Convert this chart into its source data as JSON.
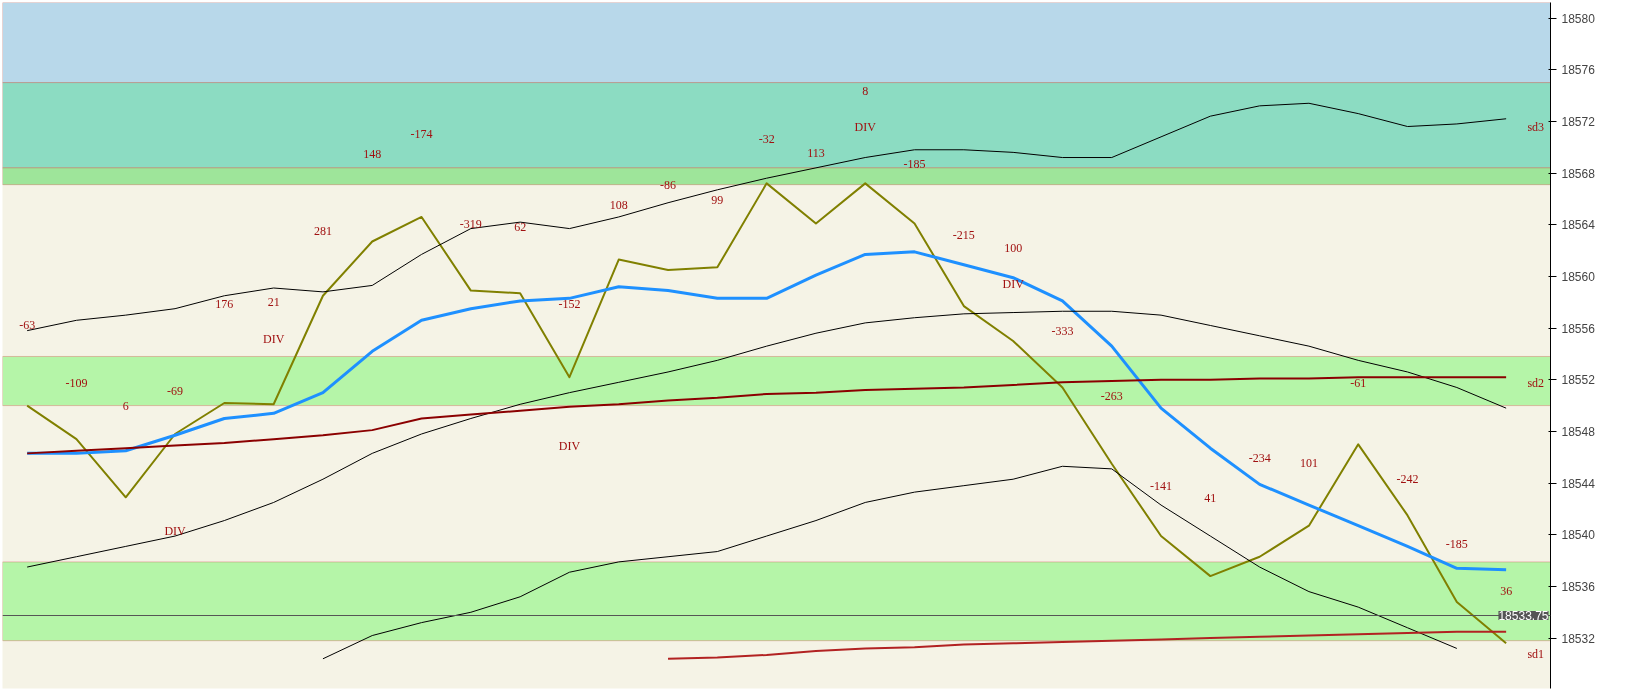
{
  "chart_data": {
    "type": "line",
    "categories": [
      null,
      null,
      null,
      null,
      null,
      null,
      null,
      null,
      null,
      null,
      null,
      null,
      null,
      null,
      null,
      null,
      null,
      null,
      null,
      null,
      null,
      null,
      null,
      null,
      null,
      null,
      null,
      null,
      null,
      null,
      null
    ],
    "ylim": [
      18528.1,
      18581.2
    ],
    "yticks": [
      18532,
      18536,
      18540,
      18544,
      18548,
      18552,
      18556,
      18560,
      18564,
      18568,
      18572,
      18576,
      18580
    ],
    "tick_labels": "y",
    "grid": false,
    "marker": "none",
    "line_style": "solid",
    "series": [
      {
        "color": "#808000",
        "values": [
          18550.0,
          18547.4,
          18542.9,
          18547.8,
          18550.2,
          18550.1,
          18558.5,
          18562.7,
          18564.6,
          18558.9,
          18558.7,
          18552.2,
          18561.3,
          18560.5,
          18560.7,
          18567.2,
          18564.1,
          18567.2,
          18564.1,
          18557.7,
          18555.0,
          18551.4,
          18545.5,
          18539.9,
          18536.8,
          18538.3,
          18540.7,
          18547.0,
          18541.5,
          18534.8,
          18531.6
        ]
      },
      {
        "color": "#1e90ff",
        "values": [
          18546.3,
          18546.3,
          18546.5,
          18547.7,
          18549.0,
          18549.4,
          18551.0,
          18554.2,
          18556.6,
          18557.5,
          18558.1,
          18558.3,
          18559.2,
          18558.9,
          18558.3,
          18558.3,
          18560.1,
          18561.7,
          18561.9,
          18560.9,
          18559.9,
          18558.1,
          18554.6,
          18549.8,
          18546.7,
          18543.9,
          18542.3,
          18540.7,
          18539.1,
          18537.4,
          18537.3
        ]
      },
      {
        "color": "#000000",
        "values": [
          18555.8,
          18556.6,
          18557.0,
          18557.5,
          18558.5,
          18559.1,
          18558.8,
          18559.3,
          18561.7,
          18563.7,
          18564.2,
          18563.7,
          18564.6,
          18565.7,
          18566.7,
          18567.6,
          18568.4,
          18569.2,
          18569.8,
          18569.8,
          18569.6,
          18569.2,
          18569.2,
          18570.8,
          18572.4,
          18573.2,
          18573.4,
          18572.6,
          18571.6,
          18571.8,
          18572.2
        ]
      },
      {
        "color": "#000000",
        "values": [
          18537.5,
          18538.3,
          18539.1,
          18539.9,
          18541.1,
          18542.5,
          18544.3,
          18546.3,
          18547.8,
          18549.0,
          18550.1,
          18551.0,
          18551.8,
          18552.6,
          18553.5,
          18554.6,
          18555.6,
          18556.4,
          18556.8,
          18557.1,
          18557.2,
          18557.3,
          18557.3,
          18557.0,
          18556.2,
          18555.4,
          18554.6,
          18553.5,
          18552.6,
          18551.4,
          18549.8
        ]
      },
      {
        "color": "#000000",
        "values": [
          null,
          null,
          null,
          null,
          null,
          null,
          18530.4,
          18532.2,
          18533.2,
          18534.0,
          18535.2,
          18537.1,
          18537.9,
          18538.3,
          18538.7,
          18539.9,
          18541.1,
          18542.5,
          18543.3,
          18543.8,
          18544.3,
          18545.3,
          18545.1,
          18542.3,
          18539.9,
          18537.5,
          18535.6,
          18534.4,
          18532.8,
          18531.2,
          null
        ]
      },
      {
        "color": "#8b0000",
        "values": [
          18546.3,
          18546.5,
          18546.7,
          18546.9,
          18547.1,
          18547.4,
          18547.7,
          18548.1,
          18549.0,
          18549.3,
          18549.6,
          18549.9,
          18550.1,
          18550.4,
          18550.6,
          18550.9,
          18551.0,
          18551.2,
          18551.3,
          18551.4,
          18551.6,
          18551.8,
          18551.9,
          18552.0,
          18552.0,
          18552.1,
          18552.1,
          18552.2,
          18552.2,
          18552.2,
          18552.2
        ]
      },
      {
        "color": "#b22222",
        "values": [
          null,
          null,
          null,
          null,
          null,
          null,
          null,
          null,
          null,
          null,
          null,
          null,
          null,
          18530.4,
          18530.5,
          18530.7,
          18531.0,
          18531.2,
          18531.3,
          18531.5,
          18531.6,
          18531.7,
          18531.8,
          18531.9,
          18532.0,
          18532.1,
          18532.2,
          18532.3,
          18532.4,
          18532.5,
          18532.5
        ]
      }
    ],
    "bands": [
      {
        "axis": "y",
        "from": 18575.0,
        "to": 18581.2,
        "color": "#b8d8ea"
      },
      {
        "axis": "y",
        "from": 18568.4,
        "to": 18575.0,
        "color": "#8cdcc2"
      },
      {
        "axis": "y",
        "from": 18567.1,
        "to": 18568.4,
        "color": "#9ee59a"
      },
      {
        "axis": "y",
        "from": 18550.0,
        "to": 18553.8,
        "color": "#b5f5a8"
      },
      {
        "axis": "y",
        "from": 18531.8,
        "to": 18537.9,
        "color": "#b5f5a8"
      }
    ],
    "ref_lines": [
      {
        "axis": "y",
        "value": 18533.75,
        "label": "18533.75",
        "color": "#555555"
      }
    ],
    "annotations": [
      "-63",
      "-109",
      "6",
      "-69",
      "176",
      "21",
      "281",
      "148",
      "-174",
      "-319",
      "62",
      "-152",
      "108",
      "-86",
      "99",
      "-32",
      "113",
      "8",
      "-185",
      "-215",
      "100",
      "-333",
      "-263",
      "-141",
      "41",
      "-234",
      "101",
      "-61",
      "-242",
      "-185",
      "36",
      "DIV",
      "DIV",
      "DIV",
      "DIV",
      "DIV",
      "sd3",
      "sd2",
      "sd1"
    ]
  }
}
